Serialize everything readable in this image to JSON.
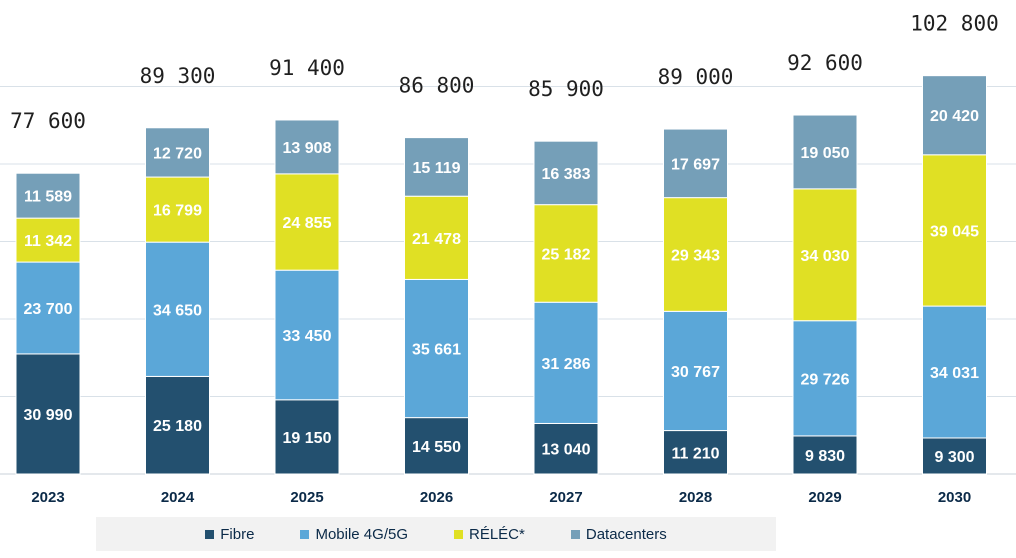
{
  "chart_data": {
    "type": "bar",
    "stacked": true,
    "categories": [
      "2023",
      "2024",
      "2025",
      "2026",
      "2027",
      "2028",
      "2029",
      "2030"
    ],
    "series": [
      {
        "name": "Fibre",
        "color": "#23506f",
        "values": [
          30990,
          25180,
          19150,
          14550,
          13040,
          11210,
          9830,
          9300
        ],
        "labels": [
          "30 990",
          "25 180",
          "19 150",
          "14 550",
          "13 040",
          "11 210",
          "9 830",
          "9 300"
        ]
      },
      {
        "name": "Mobile 4G/5G",
        "color": "#5ba7d8",
        "values": [
          23700,
          34650,
          33450,
          35661,
          31286,
          30767,
          29726,
          34031
        ],
        "labels": [
          "23 700",
          "34 650",
          "33 450",
          "35 661",
          "31 286",
          "30 767",
          "29 726",
          "34 031"
        ]
      },
      {
        "name": "RÉLÉC*",
        "color": "#e0e024",
        "values": [
          11342,
          16799,
          24855,
          21478,
          25182,
          29343,
          34030,
          39045
        ],
        "labels": [
          "11 342",
          "16 799",
          "24 855",
          "21 478",
          "25 182",
          "29 343",
          "34 030",
          "39 045"
        ]
      },
      {
        "name": "Datacenters",
        "color": "#759fb8",
        "values": [
          11589,
          12720,
          13908,
          15119,
          16383,
          17697,
          19050,
          20420
        ],
        "labels": [
          "11 589",
          "12 720",
          "13 908",
          "15 119",
          "16 383",
          "17 697",
          "19 050",
          "20 420"
        ]
      }
    ],
    "totals": [
      77600,
      89300,
      91400,
      86800,
      85900,
      89000,
      92600,
      102800
    ],
    "total_labels": [
      "77 600",
      "89 300",
      "91 400",
      "86 800",
      "85 900",
      "89 000",
      "92 600",
      "102 800"
    ],
    "ylim": [
      0,
      112000
    ],
    "grid": true,
    "legend_position": "bottom"
  }
}
